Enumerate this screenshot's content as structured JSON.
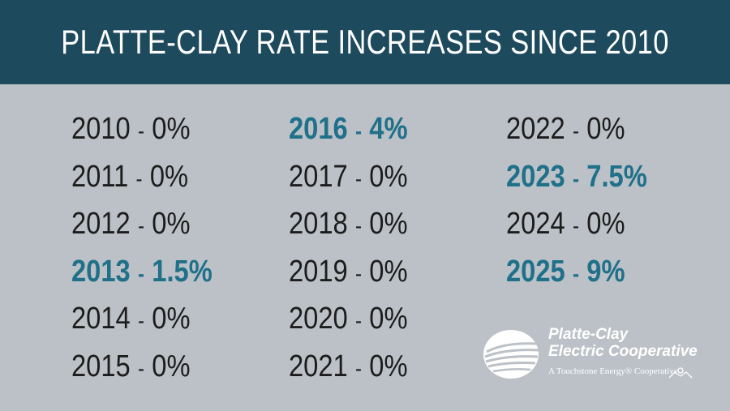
{
  "header": {
    "title": "PLATTE-CLAY RATE INCREASES SINCE 2010"
  },
  "rates": {
    "columns": [
      [
        {
          "year": "2010",
          "rate": "0%",
          "highlight": false
        },
        {
          "year": "2011",
          "rate": "0%",
          "highlight": false
        },
        {
          "year": "2012",
          "rate": "0%",
          "highlight": false
        },
        {
          "year": "2013",
          "rate": "1.5%",
          "highlight": true
        },
        {
          "year": "2014",
          "rate": "0%",
          "highlight": false
        },
        {
          "year": "2015",
          "rate": "0%",
          "highlight": false
        }
      ],
      [
        {
          "year": "2016",
          "rate": "4%",
          "highlight": true
        },
        {
          "year": "2017",
          "rate": "0%",
          "highlight": false
        },
        {
          "year": "2018",
          "rate": "0%",
          "highlight": false
        },
        {
          "year": "2019",
          "rate": "0%",
          "highlight": false
        },
        {
          "year": "2020",
          "rate": "0%",
          "highlight": false
        },
        {
          "year": "2021",
          "rate": "0%",
          "highlight": false
        }
      ],
      [
        {
          "year": "2022",
          "rate": "0%",
          "highlight": false
        },
        {
          "year": "2023",
          "rate": "7.5%",
          "highlight": true
        },
        {
          "year": "2024",
          "rate": "0%",
          "highlight": false
        },
        {
          "year": "2025",
          "rate": "9%",
          "highlight": true
        }
      ]
    ]
  },
  "logo": {
    "name_line1": "Platte-Clay",
    "name_line2": "Electric Cooperative",
    "tagline": "A Touchstone Energy® Cooperative",
    "icon": "platte-clay-logo-mark"
  },
  "colors": {
    "header_bg": "#1e4a5d",
    "body_bg": "#bcc1c7",
    "text": "#1c1c1c",
    "highlight": "#1f7089"
  }
}
